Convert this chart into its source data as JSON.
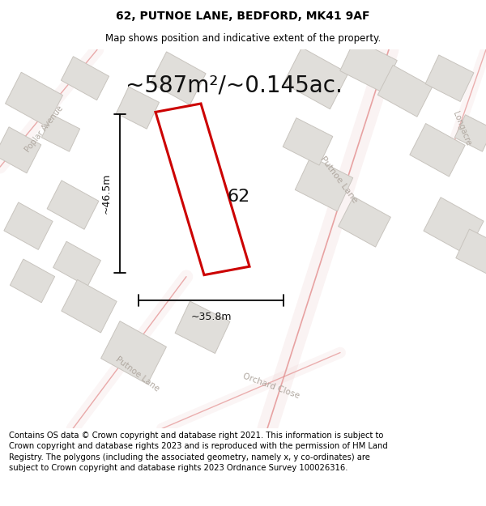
{
  "title": "62, PUTNOE LANE, BEDFORD, MK41 9AF",
  "subtitle": "Map shows position and indicative extent of the property.",
  "area_text": "~587m²/~0.145ac.",
  "width_label": "~35.8m",
  "height_label": "~46.5m",
  "property_number": "62",
  "footer_text": "Contains OS data © Crown copyright and database right 2021. This information is subject to Crown copyright and database rights 2023 and is reproduced with the permission of HM Land Registry. The polygons (including the associated geometry, namely x, y co-ordinates) are subject to Crown copyright and database rights 2023 Ordnance Survey 100026316.",
  "map_bg": "#f2f0ed",
  "title_fontsize": 10,
  "subtitle_fontsize": 8.5,
  "area_fontsize": 20,
  "label_fontsize": 9,
  "footer_fontsize": 7.2,
  "prop_outline": "#cc0000",
  "road_color": "#e08080",
  "building_fill": "#e0deda",
  "building_edge": "#c8c4be"
}
